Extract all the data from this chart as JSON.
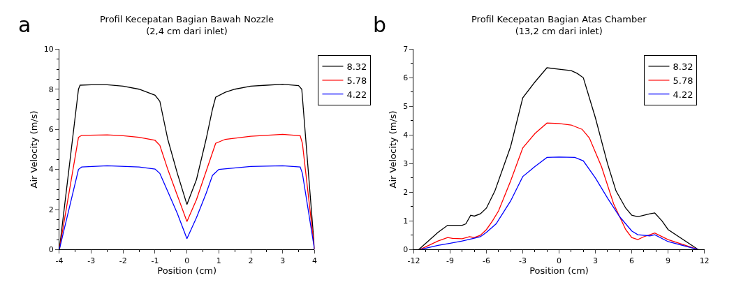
{
  "chart_data": [
    {
      "type": "line",
      "title": "Profil Kecepatan Bagian Bawah Nozzle\n(2,4 cm dari inlet)",
      "xlabel": "Position (cm)",
      "ylabel": "Air Velocity (m/s)",
      "annotations": [
        "a"
      ],
      "xlim": [
        -4,
        4
      ],
      "xticks": [
        -4,
        -3,
        -2,
        -1,
        0,
        1,
        2,
        3,
        4
      ],
      "ylim": [
        0,
        10
      ],
      "yticks": [
        0,
        2,
        4,
        6,
        8,
        10
      ],
      "legend": "right",
      "line_style": "solid",
      "marker": "none",
      "series": [
        {
          "name": "8.32",
          "color": "#000000",
          "x": [
            -4,
            -3.4,
            -3.35,
            -3,
            -2.5,
            -2,
            -1.5,
            -1,
            -0.85,
            -0.6,
            -0.3,
            0,
            0.3,
            0.6,
            0.8,
            0.9,
            1.2,
            1.5,
            2,
            2.5,
            3,
            3.5,
            3.6,
            4
          ],
          "values": [
            0,
            8.0,
            8.2,
            8.22,
            8.22,
            8.15,
            8.0,
            7.7,
            7.4,
            5.5,
            3.8,
            2.25,
            3.5,
            5.5,
            7.0,
            7.6,
            7.85,
            8.0,
            8.15,
            8.2,
            8.25,
            8.18,
            8.0,
            0
          ]
        },
        {
          "name": "5.78",
          "color": "#ff0000",
          "x": [
            -4,
            -3.4,
            -3.3,
            -2.5,
            -2,
            -1.5,
            -1,
            -0.85,
            -0.6,
            -0.3,
            0,
            0.3,
            0.6,
            0.9,
            1.2,
            2,
            3,
            3.55,
            3.62,
            4
          ],
          "values": [
            0,
            5.6,
            5.7,
            5.72,
            5.68,
            5.6,
            5.45,
            5.2,
            4.0,
            2.7,
            1.4,
            2.5,
            3.9,
            5.3,
            5.5,
            5.65,
            5.75,
            5.68,
            5.3,
            0
          ]
        },
        {
          "name": "4.22",
          "color": "#0000ff",
          "x": [
            -4,
            -3.4,
            -3.3,
            -2.5,
            -1.5,
            -1,
            -0.85,
            -0.6,
            -0.3,
            0,
            0.3,
            0.6,
            0.8,
            1,
            2,
            3,
            3.55,
            3.62,
            4
          ],
          "values": [
            0,
            4.0,
            4.12,
            4.18,
            4.12,
            4.02,
            3.8,
            2.9,
            1.8,
            0.55,
            1.6,
            2.8,
            3.7,
            4.0,
            4.15,
            4.18,
            4.12,
            3.8,
            0
          ]
        }
      ]
    },
    {
      "type": "line",
      "title": "Profil Kecepatan Bagian Atas Chamber\n(13,2 cm dari inlet)",
      "xlabel": "Position (cm)",
      "ylabel": "Air Velocity (m/s)",
      "annotations": [
        "b"
      ],
      "xlim": [
        -12,
        12
      ],
      "xticks": [
        -12,
        -9,
        -6,
        -3,
        0,
        3,
        6,
        9,
        12
      ],
      "ylim": [
        0,
        7
      ],
      "yticks": [
        0,
        1,
        2,
        3,
        4,
        5,
        6,
        7
      ],
      "legend": "top right",
      "line_style": "solid",
      "marker": "none",
      "series": [
        {
          "name": "8.32",
          "color": "#000000",
          "x": [
            -11.6,
            -10,
            -9.2,
            -8,
            -7.7,
            -7.3,
            -7,
            -6.5,
            -6,
            -5.3,
            -4,
            -3,
            -2,
            -1,
            0,
            1,
            1.5,
            2,
            3,
            4,
            4.7,
            5.5,
            6,
            6.5,
            7.5,
            7.9,
            8.5,
            9,
            11.5
          ],
          "values": [
            0,
            0.6,
            0.85,
            0.85,
            0.9,
            1.2,
            1.17,
            1.25,
            1.45,
            2.05,
            3.6,
            5.3,
            5.85,
            6.35,
            6.3,
            6.25,
            6.15,
            6.0,
            4.6,
            3.0,
            2.05,
            1.45,
            1.2,
            1.15,
            1.25,
            1.28,
            1.0,
            0.7,
            0
          ]
        },
        {
          "name": "5.78",
          "color": "#ff0000",
          "x": [
            -11.5,
            -10,
            -9.2,
            -8.8,
            -8,
            -7.4,
            -7,
            -6.5,
            -6,
            -5.5,
            -5,
            -4,
            -3,
            -2,
            -1,
            0,
            1,
            1.9,
            2.5,
            3.5,
            4.5,
            5.5,
            6,
            6.5,
            7,
            7.9,
            9,
            11.5
          ],
          "values": [
            0,
            0.3,
            0.42,
            0.39,
            0.38,
            0.45,
            0.42,
            0.5,
            0.7,
            1.0,
            1.35,
            2.4,
            3.55,
            4.05,
            4.42,
            4.4,
            4.35,
            4.2,
            3.9,
            2.9,
            1.6,
            0.7,
            0.42,
            0.35,
            0.45,
            0.58,
            0.35,
            0
          ]
        },
        {
          "name": "4.22",
          "color": "#0000ff",
          "x": [
            -11.5,
            -10,
            -9,
            -8,
            -7,
            -6.5,
            -6,
            -5.2,
            -4,
            -3,
            -2,
            -1,
            0,
            1.3,
            2,
            3,
            4,
            5,
            6,
            6.5,
            7.5,
            7.9,
            9,
            11.5
          ],
          "values": [
            0,
            0.15,
            0.22,
            0.3,
            0.4,
            0.45,
            0.6,
            0.9,
            1.7,
            2.55,
            2.9,
            3.22,
            3.23,
            3.22,
            3.1,
            2.5,
            1.8,
            1.15,
            0.65,
            0.52,
            0.48,
            0.52,
            0.28,
            0
          ]
        }
      ]
    }
  ]
}
